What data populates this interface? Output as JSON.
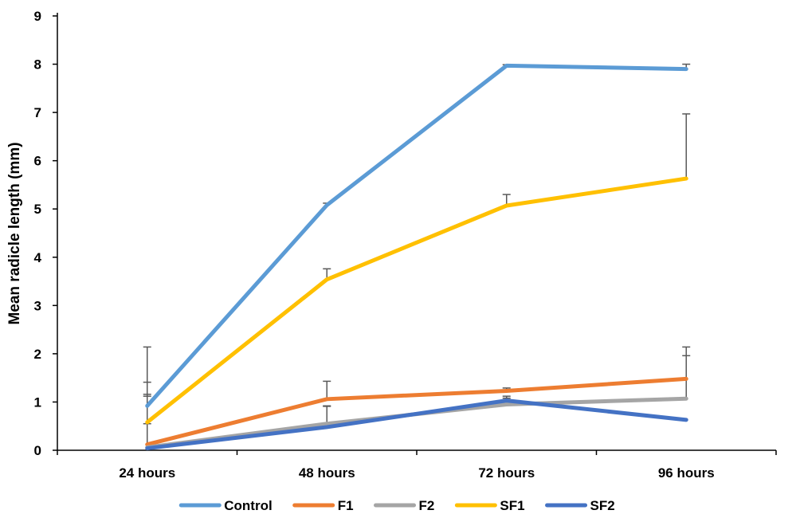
{
  "chart_data": {
    "type": "line",
    "categories": [
      "24 hours",
      "48 hours",
      "72 hours",
      "96 hours"
    ],
    "ylabel": "Mean radicle length (mm)",
    "ylim": [
      0,
      9
    ],
    "yticks": [
      0,
      1,
      2,
      3,
      4,
      5,
      6,
      7,
      8,
      9
    ],
    "grid": false,
    "legend_position": "bottom",
    "series": [
      {
        "name": "Control",
        "color": "#5B9BD5",
        "values": [
          0.92,
          5.08,
          7.97,
          7.9
        ],
        "error_upper": [
          2.14,
          5.12,
          7.99,
          8.0
        ]
      },
      {
        "name": "F1",
        "color": "#ED7D31",
        "values": [
          0.12,
          1.06,
          1.23,
          1.48
        ],
        "error_upper": [
          1.41,
          1.43,
          1.29,
          2.14
        ]
      },
      {
        "name": "F2",
        "color": "#A5A5A5",
        "values": [
          0.06,
          0.55,
          0.95,
          1.07
        ],
        "error_upper": [
          1.12,
          0.91,
          1.12,
          1.96
        ]
      },
      {
        "name": "SF1",
        "color": "#FFC000",
        "values": [
          0.58,
          3.54,
          5.07,
          5.63
        ],
        "error_upper": [
          1.16,
          3.76,
          5.3,
          6.97
        ]
      },
      {
        "name": "SF2",
        "color": "#4472C4",
        "values": [
          0.04,
          0.48,
          1.03,
          0.63
        ],
        "error_upper": [
          0.55,
          0.92,
          1.08,
          0.63
        ]
      }
    ]
  }
}
